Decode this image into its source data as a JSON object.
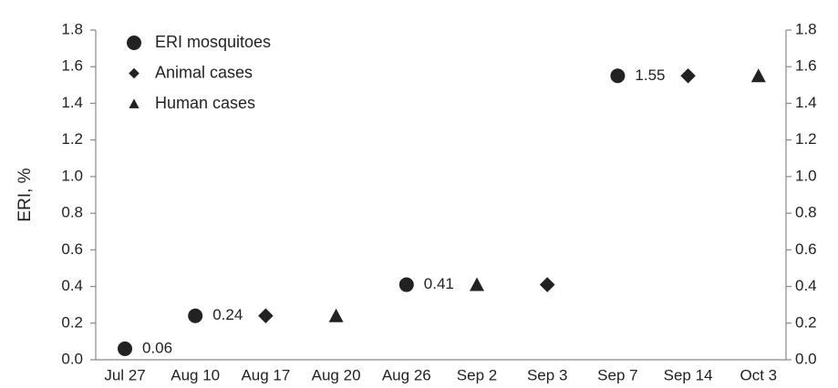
{
  "chart_data": {
    "type": "scatter",
    "y_label": "ERI, %",
    "categories": [
      "Jul 27",
      "Aug 10",
      "Aug 17",
      "Aug 20",
      "Aug 26",
      "Sep 2",
      "Sep 3",
      "Sep 7",
      "Sep 14",
      "Oct 3"
    ],
    "series": [
      {
        "name": "ERI mosquitoes",
        "marker": "circle",
        "color": "#222222",
        "show_labels": true,
        "values": [
          0.06,
          0.24,
          null,
          null,
          0.41,
          null,
          null,
          1.55,
          null,
          null
        ]
      },
      {
        "name": "Animal cases",
        "marker": "diamond",
        "color": "#222222",
        "values": [
          null,
          null,
          0.24,
          null,
          null,
          null,
          0.41,
          null,
          1.55,
          null
        ]
      },
      {
        "name": "Human cases",
        "marker": "triangle",
        "color": "#222222",
        "values": [
          null,
          null,
          null,
          0.24,
          null,
          0.41,
          null,
          null,
          null,
          1.55
        ]
      }
    ],
    "ylim": [
      0,
      1.8
    ],
    "yticks": [
      {
        "value": 0,
        "label": "0.0"
      },
      0.2,
      0.4,
      0.6,
      0.8,
      {
        "value": 1,
        "label": "1.0"
      },
      1.2,
      1.4,
      1.6,
      1.8
    ],
    "y2lim": [
      0,
      1.8
    ],
    "y2ticks": [
      {
        "value": 0,
        "label": "0.0"
      },
      0.2,
      0.4,
      0.6,
      0.8,
      {
        "value": 1,
        "label": "1.0"
      },
      1.2,
      1.4,
      1.6,
      1.8
    ],
    "legend": "top-left"
  }
}
